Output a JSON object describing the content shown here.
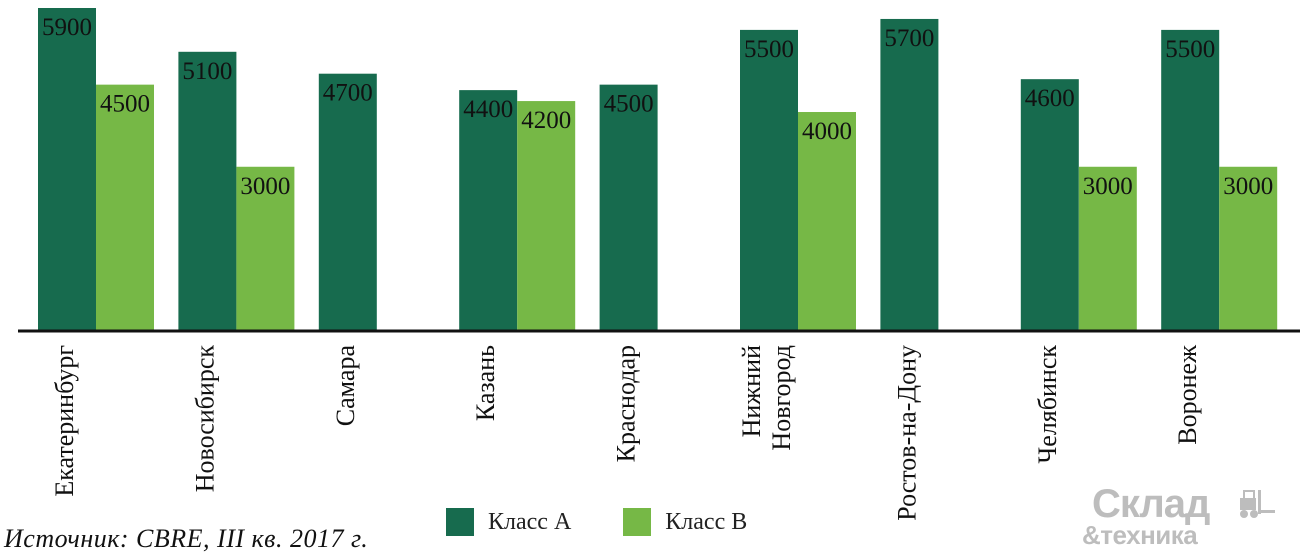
{
  "chart_data": {
    "type": "bar",
    "categories": [
      "Екатеринбург",
      "Новосибирск",
      "Самара",
      "Казань",
      "Краснодар",
      "Нижний Новгород",
      "Ростов-на-Дону",
      "Челябинск",
      "Воронеж"
    ],
    "category_lines": [
      [
        "Екатеринбург"
      ],
      [
        "Новосибирск"
      ],
      [
        "Самара"
      ],
      [
        "Казань"
      ],
      [
        "Краснодар"
      ],
      [
        "Нижний",
        "Новгород"
      ],
      [
        "Ростов-на-Дону"
      ],
      [
        "Челябинск"
      ],
      [
        "Воронеж"
      ]
    ],
    "series": [
      {
        "name": "Класс А",
        "color": "#176b4e",
        "values": [
          5900,
          5100,
          4700,
          4400,
          4500,
          5500,
          5700,
          4600,
          5500
        ]
      },
      {
        "name": "Класс В",
        "color": "#76b846",
        "values": [
          4500,
          3000,
          null,
          4200,
          null,
          4000,
          null,
          3000,
          3000
        ]
      }
    ],
    "ylim": [
      0,
      6000
    ],
    "grid": false,
    "legend_position": "bottom"
  },
  "source": "Источник: CBRE, III кв. 2017 г.",
  "logo": {
    "main": "Склад",
    "sub": "&техника",
    "icon": "forklift-icon"
  }
}
